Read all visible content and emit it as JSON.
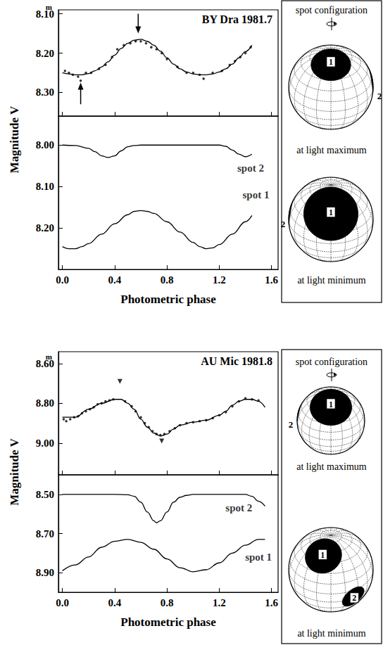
{
  "chart_data": [
    {
      "type": "line",
      "title": "BY Dra 1981.7",
      "ylabel": "Magnitude V",
      "y_unit": "m",
      "xlim": [
        -0.03,
        1.65
      ],
      "xticks": [
        {
          "value": 0,
          "label": "0.0"
        },
        0.4,
        0.8,
        1.2,
        1.6
      ],
      "ylim": [
        8.36,
        8.09
      ],
      "yticks": [
        {
          "value": 8.1,
          "label": "8.10"
        },
        {
          "value": 8.2,
          "label": "8.20"
        },
        {
          "value": 8.3,
          "label": "8.30"
        }
      ],
      "tick_labels": "y",
      "series": [
        {
          "type": "scatter",
          "marker": "circle",
          "color": "#000000",
          "x": [
            0.02,
            0.05,
            0.08,
            0.12,
            0.14,
            0.18,
            0.22,
            0.28,
            0.33,
            0.38,
            0.42,
            0.47,
            0.52,
            0.56,
            0.6,
            0.64,
            0.68,
            0.72,
            0.76,
            0.8,
            0.88,
            0.95,
            1.0,
            1.05,
            1.08,
            1.15,
            1.22,
            1.28,
            1.32,
            1.36,
            1.4,
            1.44
          ],
          "values": [
            8.245,
            8.25,
            8.255,
            8.26,
            8.27,
            8.25,
            8.25,
            8.24,
            8.23,
            8.21,
            8.19,
            8.18,
            8.175,
            8.17,
            8.17,
            8.175,
            8.185,
            8.19,
            8.2,
            8.215,
            8.235,
            8.25,
            8.25,
            8.255,
            8.265,
            8.25,
            8.245,
            8.23,
            8.22,
            8.21,
            8.2,
            8.185
          ]
        },
        {
          "type": "line",
          "color": "#000000",
          "x": [
            0,
            0.05,
            0.1,
            0.15,
            0.2,
            0.25,
            0.3,
            0.35,
            0.4,
            0.45,
            0.5,
            0.55,
            0.6,
            0.65,
            0.7,
            0.75,
            0.8,
            0.85,
            0.9,
            0.95,
            1.0,
            1.05,
            1.1,
            1.15,
            1.2,
            1.25,
            1.3,
            1.35,
            1.4,
            1.45
          ],
          "values": [
            8.25,
            8.253,
            8.255,
            8.255,
            8.252,
            8.245,
            8.235,
            8.222,
            8.205,
            8.188,
            8.175,
            8.167,
            8.165,
            8.17,
            8.18,
            8.195,
            8.212,
            8.228,
            8.24,
            8.248,
            8.253,
            8.255,
            8.255,
            8.253,
            8.248,
            8.24,
            8.228,
            8.212,
            8.196,
            8.18
          ]
        }
      ],
      "arrows": [
        {
          "x": 0.58,
          "from": 8.1,
          "to": 8.15
        },
        {
          "x": 0.14,
          "from": 8.33,
          "to": 8.275
        }
      ]
    },
    {
      "type": "line",
      "xlabel": "Photometric phase",
      "xlim": [
        -0.03,
        1.65
      ],
      "xticks": [
        {
          "value": 0,
          "label": "0.0"
        },
        0.4,
        0.8,
        1.2,
        1.6
      ],
      "ylim": [
        8.3,
        7.93
      ],
      "yticks": [
        {
          "value": 8.0,
          "label": "8.00"
        },
        {
          "value": 8.1,
          "label": "8.10"
        },
        {
          "value": 8.2,
          "label": "8.20"
        }
      ],
      "series": [
        {
          "type": "line",
          "color": "#000000",
          "x": [
            0,
            0.1,
            0.2,
            0.25,
            0.3,
            0.35,
            0.4,
            0.45,
            0.5,
            0.55,
            0.6,
            0.8,
            1.0,
            1.2,
            1.25,
            1.3,
            1.35,
            1.4,
            1.45
          ],
          "values": [
            8.0,
            8.001,
            8.008,
            8.016,
            8.026,
            8.03,
            8.026,
            8.014,
            8.004,
            8.001,
            8.0,
            8.0,
            8.0,
            8.0,
            8.003,
            8.012,
            8.022,
            8.028,
            8.022
          ]
        },
        {
          "type": "line",
          "color": "#000000",
          "x": [
            0,
            0.05,
            0.1,
            0.15,
            0.2,
            0.3,
            0.4,
            0.5,
            0.55,
            0.6,
            0.65,
            0.7,
            0.8,
            0.9,
            1.0,
            1.05,
            1.1,
            1.15,
            1.2,
            1.3,
            1.4,
            1.45
          ],
          "values": [
            8.245,
            8.25,
            8.25,
            8.245,
            8.238,
            8.215,
            8.19,
            8.168,
            8.16,
            8.158,
            8.16,
            8.165,
            8.185,
            8.21,
            8.235,
            8.245,
            8.25,
            8.248,
            8.24,
            8.215,
            8.185,
            8.17
          ]
        }
      ],
      "annotations": [
        {
          "text": "spot 2",
          "x": 1.44,
          "y": 8.055
        },
        {
          "text": "spot 1",
          "x": 1.48,
          "y": 8.12
        }
      ]
    },
    {
      "type": "line",
      "title": "AU Mic 1981.8",
      "ylabel": "Magnitude V",
      "y_unit": "m",
      "xlim": [
        -0.03,
        1.65
      ],
      "xticks": [
        {
          "value": 0,
          "label": "0.0"
        },
        0.4,
        0.8,
        1.2,
        1.6
      ],
      "ylim": [
        9.16,
        8.54
      ],
      "yticks": [
        {
          "value": 8.6,
          "label": "8.60"
        },
        {
          "value": 8.8,
          "label": "8.80"
        },
        {
          "value": 9.0,
          "label": "9.00"
        }
      ],
      "tick_labels": "y",
      "series": [
        {
          "type": "scatter",
          "marker": "circle",
          "color": "#000000",
          "x": [
            0.01,
            0.03,
            0.06,
            0.09,
            0.12,
            0.15,
            0.18,
            0.21,
            0.24,
            0.27,
            0.3,
            0.33,
            0.36,
            0.39,
            0.48,
            0.53,
            0.56,
            0.6,
            0.63,
            0.66,
            0.69,
            0.72,
            0.75,
            0.78,
            0.82,
            0.86,
            0.9,
            0.95,
            1.0,
            1.05,
            1.1,
            1.15,
            1.2,
            1.25,
            1.3,
            1.35,
            1.4,
            1.45,
            1.5
          ],
          "values": [
            8.88,
            8.89,
            8.88,
            8.87,
            8.865,
            8.85,
            8.84,
            8.83,
            8.82,
            8.805,
            8.8,
            8.79,
            8.785,
            8.78,
            8.79,
            8.815,
            8.84,
            8.87,
            8.9,
            8.92,
            8.94,
            8.955,
            8.96,
            8.955,
            8.94,
            8.925,
            8.91,
            8.9,
            8.895,
            8.89,
            8.885,
            8.875,
            8.86,
            8.845,
            8.815,
            8.79,
            8.775,
            8.78,
            8.785
          ]
        },
        {
          "type": "scatter",
          "marker": "triangle-down",
          "color": "#000000",
          "x": [
            0.44,
            0.76
          ],
          "values": [
            8.69,
            8.99
          ]
        },
        {
          "type": "line",
          "color": "#000000",
          "x": [
            0,
            0.1,
            0.2,
            0.3,
            0.4,
            0.45,
            0.5,
            0.55,
            0.6,
            0.65,
            0.7,
            0.75,
            0.8,
            0.85,
            0.9,
            1.0,
            1.1,
            1.2,
            1.25,
            1.3,
            1.35,
            1.4,
            1.45,
            1.5,
            1.55
          ],
          "values": [
            8.87,
            8.87,
            8.83,
            8.8,
            8.78,
            8.78,
            8.8,
            8.83,
            8.88,
            8.92,
            8.95,
            8.965,
            8.955,
            8.93,
            8.91,
            8.895,
            8.885,
            8.86,
            8.84,
            8.81,
            8.79,
            8.78,
            8.78,
            8.79,
            8.82
          ]
        }
      ]
    },
    {
      "type": "line",
      "xlabel": "Photometric phase",
      "xlim": [
        -0.03,
        1.65
      ],
      "xticks": [
        {
          "value": 0,
          "label": "0.0"
        },
        0.4,
        0.8,
        1.2,
        1.6
      ],
      "ylim": [
        9.0,
        8.4
      ],
      "yticks": [
        {
          "value": 8.5,
          "label": "8.50"
        },
        {
          "value": 8.7,
          "label": "8.70"
        },
        {
          "value": 8.9,
          "label": "8.90"
        }
      ],
      "series": [
        {
          "type": "line",
          "color": "#000000",
          "x": [
            0,
            0.1,
            0.2,
            0.3,
            0.4,
            0.5,
            0.55,
            0.6,
            0.65,
            0.7,
            0.72,
            0.75,
            0.8,
            0.85,
            0.9,
            0.95,
            1.0,
            1.1,
            1.2,
            1.3,
            1.4,
            1.45,
            1.5,
            1.55
          ],
          "values": [
            8.5,
            8.5,
            8.5,
            8.5,
            8.5,
            8.502,
            8.51,
            8.54,
            8.59,
            8.635,
            8.645,
            8.635,
            8.59,
            8.54,
            8.515,
            8.505,
            8.5,
            8.5,
            8.5,
            8.5,
            8.5,
            8.51,
            8.535,
            8.56
          ]
        },
        {
          "type": "line",
          "color": "#000000",
          "x": [
            0,
            0.1,
            0.2,
            0.3,
            0.4,
            0.5,
            0.6,
            0.7,
            0.8,
            0.9,
            1.0,
            1.1,
            1.2,
            1.3,
            1.4,
            1.5,
            1.55
          ],
          "values": [
            8.89,
            8.86,
            8.82,
            8.77,
            8.74,
            8.73,
            8.745,
            8.78,
            8.83,
            8.875,
            8.895,
            8.885,
            8.85,
            8.8,
            8.76,
            8.73,
            8.73
          ]
        }
      ],
      "annotations": [
        {
          "text": "spot 2",
          "x": 1.35,
          "y": 8.57
        },
        {
          "text": "spot 1",
          "x": 1.5,
          "y": 8.82
        }
      ]
    }
  ],
  "spot_panels": [
    {
      "title": "spot configuration",
      "views": [
        {
          "caption": "at light maximum",
          "spots": [
            "1",
            "2"
          ]
        },
        {
          "caption": "at light minimum",
          "spots": [
            "1",
            "2"
          ]
        }
      ]
    },
    {
      "title": "spot configuration",
      "views": [
        {
          "caption": "at light maximum",
          "spots": [
            "1",
            "2"
          ]
        },
        {
          "caption": "at light minimum",
          "spots": [
            "1",
            "2"
          ]
        }
      ]
    }
  ]
}
